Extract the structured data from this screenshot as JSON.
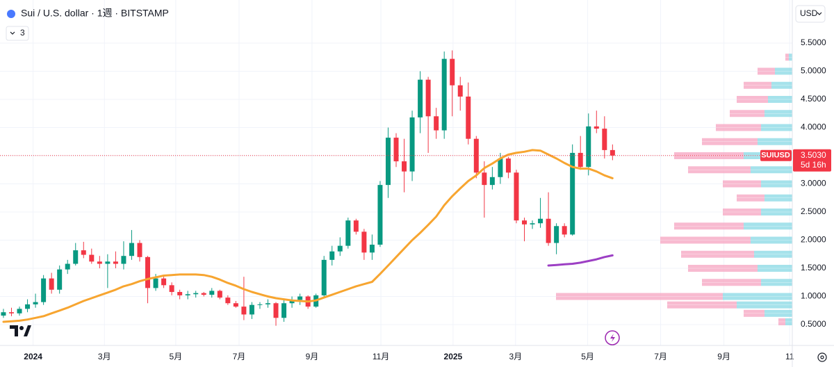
{
  "chart_data": {
    "type": "candlestick",
    "title": "Sui / U.S. dollar · 1週 · BITSTAMP",
    "indicator_count": 3,
    "currency": "USD",
    "up_color": "#089981",
    "down_color": "#f23645",
    "open": [
      0.66,
      0.72,
      0.7,
      0.78,
      0.86,
      0.9,
      1.32,
      1.12,
      1.48,
      1.58,
      1.82,
      1.74,
      1.62,
      1.58,
      1.62,
      1.58,
      1.72,
      1.95,
      1.7,
      1.15,
      1.32,
      1.2,
      1.08,
      1.02,
      1.04,
      1.06,
      1.03,
      1.1,
      0.98,
      0.88,
      0.82,
      0.68,
      0.85,
      0.86,
      0.88,
      0.62,
      0.88,
      0.94,
      1.0,
      0.82,
      1.02,
      1.65,
      1.8,
      1.9,
      2.35,
      2.15,
      1.78,
      1.92,
      2.98,
      3.82,
      3.4,
      3.22,
      4.18,
      4.85,
      4.2,
      3.95,
      5.22,
      4.75,
      4.55,
      3.8,
      3.2,
      2.98,
      3.12,
      3.45,
      3.2,
      2.35,
      2.28,
      2.3,
      2.38,
      1.95,
      2.25,
      2.1,
      3.55,
      3.3,
      4.02,
      3.98,
      3.6
    ],
    "high": [
      0.78,
      0.8,
      0.82,
      0.95,
      1.05,
      1.38,
      1.42,
      1.55,
      1.65,
      1.95,
      1.97,
      1.85,
      1.72,
      1.75,
      1.8,
      1.98,
      2.18,
      2.0,
      1.72,
      1.4,
      1.38,
      1.25,
      1.12,
      1.1,
      1.1,
      1.08,
      1.15,
      1.12,
      1.02,
      0.92,
      1.35,
      0.9,
      0.9,
      0.95,
      0.9,
      0.95,
      1.0,
      1.05,
      1.02,
      1.05,
      1.72,
      1.9,
      2.05,
      2.4,
      2.38,
      2.2,
      2.1,
      3.05,
      4.0,
      3.9,
      3.8,
      4.3,
      5.0,
      4.9,
      4.35,
      5.35,
      5.37,
      4.9,
      4.8,
      3.85,
      3.4,
      3.3,
      3.55,
      3.48,
      3.25,
      2.4,
      2.35,
      2.75,
      2.85,
      2.3,
      2.3,
      3.7,
      3.85,
      4.25,
      4.3,
      4.2,
      3.7
    ],
    "low": [
      0.62,
      0.65,
      0.66,
      0.72,
      0.8,
      0.85,
      1.05,
      1.05,
      1.4,
      1.55,
      1.68,
      1.58,
      1.5,
      1.15,
      1.5,
      1.48,
      1.65,
      1.62,
      0.88,
      1.1,
      1.15,
      1.02,
      0.95,
      0.95,
      0.98,
      1.0,
      0.98,
      0.95,
      0.85,
      0.8,
      0.58,
      0.6,
      0.78,
      0.8,
      0.48,
      0.55,
      0.8,
      0.85,
      0.78,
      0.8,
      1.0,
      1.55,
      1.72,
      1.85,
      2.1,
      1.65,
      1.65,
      1.88,
      2.75,
      3.3,
      2.85,
      3.05,
      3.9,
      3.55,
      3.8,
      3.8,
      4.2,
      4.3,
      3.7,
      3.1,
      2.4,
      2.9,
      3.0,
      3.1,
      2.3,
      1.98,
      2.2,
      2.22,
      1.9,
      1.75,
      2.05,
      2.08,
      3.25,
      3.15,
      3.9,
      3.45,
      3.42
    ],
    "close": [
      0.72,
      0.7,
      0.78,
      0.86,
      0.9,
      1.32,
      1.12,
      1.48,
      1.58,
      1.82,
      1.74,
      1.62,
      1.58,
      1.62,
      1.58,
      1.72,
      1.95,
      1.7,
      1.15,
      1.32,
      1.2,
      1.08,
      1.02,
      1.04,
      1.06,
      1.03,
      1.1,
      0.98,
      0.88,
      0.82,
      0.68,
      0.85,
      0.86,
      0.88,
      0.62,
      0.88,
      0.94,
      1.0,
      0.82,
      1.02,
      1.65,
      1.8,
      1.9,
      2.35,
      2.15,
      1.78,
      1.92,
      2.98,
      3.82,
      3.4,
      3.22,
      4.18,
      4.85,
      4.2,
      3.95,
      5.22,
      4.75,
      4.55,
      3.8,
      3.2,
      2.98,
      3.12,
      3.45,
      3.2,
      2.35,
      2.28,
      2.3,
      2.38,
      1.95,
      2.25,
      2.1,
      3.55,
      3.3,
      4.02,
      3.98,
      3.6,
      3.503
    ],
    "lines": [
      {
        "color": "#f7a530",
        "values": [
          0.55,
          0.56,
          0.57,
          0.59,
          0.62,
          0.65,
          0.7,
          0.75,
          0.8,
          0.86,
          0.92,
          0.97,
          1.02,
          1.07,
          1.12,
          1.18,
          1.22,
          1.27,
          1.31,
          1.34,
          1.37,
          1.38,
          1.39,
          1.39,
          1.39,
          1.38,
          1.35,
          1.3,
          1.24,
          1.19,
          1.13,
          1.08,
          1.04,
          1.0,
          0.97,
          0.95,
          0.93,
          0.92,
          0.91,
          0.93,
          0.98,
          1.03,
          1.08,
          1.13,
          1.18,
          1.22,
          1.26,
          1.4,
          1.55,
          1.7,
          1.85,
          2.0,
          2.13,
          2.27,
          2.42,
          2.62,
          2.78,
          2.92,
          3.05,
          3.15,
          3.28,
          3.36,
          3.45,
          3.52,
          3.55,
          3.57,
          3.6,
          3.59,
          3.52,
          3.45,
          3.37,
          3.3,
          3.27,
          3.27,
          3.22,
          3.15,
          3.1
        ]
      },
      {
        "color": "#9c3fc4",
        "values": [
          null,
          null,
          null,
          null,
          null,
          null,
          null,
          null,
          null,
          null,
          null,
          null,
          null,
          null,
          null,
          null,
          null,
          null,
          null,
          null,
          null,
          null,
          null,
          null,
          null,
          null,
          null,
          null,
          null,
          null,
          null,
          null,
          null,
          null,
          null,
          null,
          null,
          null,
          null,
          null,
          null,
          null,
          null,
          null,
          null,
          null,
          null,
          null,
          null,
          null,
          null,
          null,
          null,
          null,
          null,
          null,
          null,
          null,
          null,
          null,
          null,
          null,
          null,
          null,
          null,
          null,
          null,
          null,
          1.55,
          1.56,
          1.57,
          1.58,
          1.6,
          1.63,
          1.66,
          1.7,
          1.73
        ]
      }
    ],
    "volume_profile": {
      "up_color": "#8fdbe6",
      "down_color": "#f6a9c4",
      "levels": [
        5.25,
        5.0,
        4.75,
        4.5,
        4.25,
        4.0,
        3.75,
        3.5,
        3.25,
        3.0,
        2.75,
        2.5,
        2.25,
        2.0,
        1.75,
        1.5,
        1.25,
        1.0,
        0.85,
        0.7,
        0.55
      ],
      "up": [
        5,
        25,
        30,
        35,
        40,
        45,
        50,
        70,
        60,
        45,
        40,
        45,
        70,
        60,
        55,
        50,
        45,
        100,
        80,
        40,
        10
      ],
      "down": [
        5,
        25,
        40,
        45,
        50,
        65,
        80,
        100,
        90,
        55,
        40,
        55,
        100,
        130,
        105,
        100,
        85,
        240,
        100,
        30,
        10
      ]
    },
    "price_tag": {
      "symbol": "SUIUSD",
      "value": 3.503,
      "label": "3.5030",
      "countdown": "5d 16h"
    },
    "xlim": [
      -0.43,
      98.43
    ],
    "xticks": [
      {
        "value": 3.7,
        "label": "2024"
      },
      {
        "value": 12.6,
        "label": "3月"
      },
      {
        "value": 21.5,
        "label": "5月"
      },
      {
        "value": 29.4,
        "label": "7月"
      },
      {
        "value": 38.5,
        "label": "9月"
      },
      {
        "value": 47.1,
        "label": "11月"
      },
      {
        "value": 56.1,
        "label": "2025"
      },
      {
        "value": 63.9,
        "label": "3月"
      },
      {
        "value": 72.9,
        "label": "5月"
      },
      {
        "value": 82.0,
        "label": "7月"
      },
      {
        "value": 89.9,
        "label": "9月"
      },
      {
        "value": 98.1,
        "label": "11"
      }
    ],
    "ylim": [
      0.13,
      6.265
    ],
    "yticks": [
      {
        "value": 0.5,
        "label": "0.5000"
      },
      {
        "value": 1.0,
        "label": "1.0000"
      },
      {
        "value": 1.5,
        "label": "1.5000"
      },
      {
        "value": 2.0,
        "label": "2.0000"
      },
      {
        "value": 2.5,
        "label": "2.5000"
      },
      {
        "value": 3.0,
        "label": "3.0000"
      },
      {
        "value": 3.5,
        "label": "3.5000"
      },
      {
        "value": 4.0,
        "label": "4.0000"
      },
      {
        "value": 4.5,
        "label": "4.5000"
      },
      {
        "value": 5.0,
        "label": "5.0000"
      },
      {
        "value": 5.5,
        "label": "5.5000"
      }
    ],
    "grid": true
  }
}
